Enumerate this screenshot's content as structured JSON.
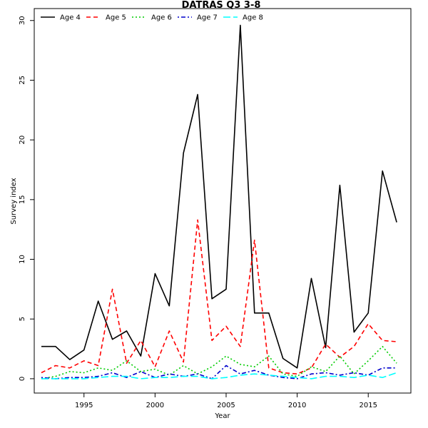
{
  "chart_data": {
    "type": "line",
    "title": "DATRAS Q3 3-8",
    "xlabel": "Year",
    "ylabel": "Survey index",
    "xlim": [
      1991.5,
      2018.0
    ],
    "ylim": [
      -1.2,
      31.0
    ],
    "x_ticks": [
      1995,
      2000,
      2005,
      2010,
      2015
    ],
    "y_ticks": [
      0,
      5,
      10,
      15,
      20,
      25,
      30
    ],
    "grid": false,
    "legend_position": "top-left",
    "x": [
      1992,
      1993,
      1994,
      1995,
      1996,
      1997,
      1998,
      1999,
      2000,
      2001,
      2002,
      2003,
      2004,
      2005,
      2006,
      2007,
      2008,
      2009,
      2010,
      2011,
      2012,
      2013,
      2014,
      2015,
      2016,
      2017
    ],
    "series": [
      {
        "name": "Age 4",
        "color": "#000000",
        "dash": "solid",
        "values": [
          2.7,
          2.7,
          1.6,
          2.4,
          6.5,
          3.3,
          4.0,
          1.9,
          8.8,
          6.1,
          18.9,
          23.8,
          6.7,
          7.5,
          29.6,
          5.5,
          5.5,
          1.7,
          0.9,
          8.4,
          2.6,
          16.2,
          3.9,
          5.5,
          17.4,
          13.1
        ]
      },
      {
        "name": "Age 5",
        "color": "#ff0000",
        "dash": "dashed",
        "values": [
          0.5,
          1.1,
          0.9,
          1.5,
          1.1,
          7.5,
          1.3,
          3.2,
          1.0,
          4.0,
          1.4,
          13.3,
          3.2,
          4.4,
          2.7,
          11.6,
          0.9,
          0.5,
          0.4,
          0.9,
          2.9,
          1.8,
          2.7,
          4.6,
          3.2,
          3.1
        ]
      },
      {
        "name": "Age 6",
        "color": "#00cc00",
        "dash": "dotted",
        "values": [
          0.0,
          0.2,
          0.6,
          0.5,
          0.9,
          0.7,
          1.5,
          0.6,
          0.8,
          0.3,
          1.1,
          0.4,
          1.0,
          1.9,
          1.2,
          1.0,
          1.9,
          0.4,
          0.2,
          1.0,
          0.6,
          1.9,
          0.4,
          1.5,
          2.7,
          1.3
        ]
      },
      {
        "name": "Age 7",
        "color": "#0000cc",
        "dash": "dotdash",
        "values": [
          0.1,
          0.0,
          0.1,
          0.1,
          0.2,
          0.5,
          0.1,
          0.6,
          0.1,
          0.4,
          0.2,
          0.4,
          0.0,
          1.1,
          0.4,
          0.7,
          0.3,
          0.1,
          0.0,
          0.4,
          0.5,
          0.3,
          0.5,
          0.3,
          0.9,
          0.9
        ]
      },
      {
        "name": "Age 8",
        "color": "#00ffff",
        "dash": "longdash",
        "values": [
          0.0,
          0.0,
          0.0,
          0.0,
          0.1,
          0.2,
          0.2,
          0.0,
          0.1,
          0.1,
          0.2,
          0.2,
          0.0,
          0.1,
          0.3,
          0.4,
          0.3,
          0.2,
          0.1,
          0.0,
          0.2,
          0.2,
          0.1,
          0.3,
          0.1,
          0.5
        ]
      }
    ]
  }
}
